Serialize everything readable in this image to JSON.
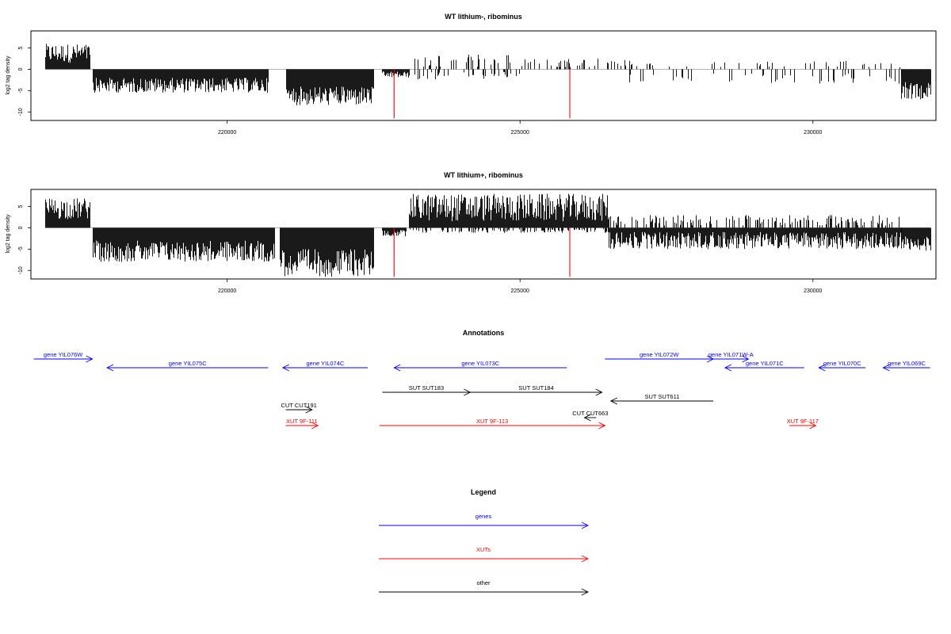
{
  "colors": {
    "gene": "#0000ff",
    "xut": "#ff0000",
    "other": "#000000",
    "signal": "#000000",
    "marker": "#ff0000",
    "baseline": "#888888"
  },
  "chart_data": [
    {
      "type": "bar",
      "title": "WT lithium-, ribominus",
      "ylabel": "log2 tag density",
      "xlim": [
        216650,
        232100
      ],
      "ylim": [
        -12,
        9
      ],
      "x_ticks": [
        220000,
        225000,
        230000
      ],
      "x_tick_labels": [
        "220000",
        "225000",
        "230000"
      ],
      "y_ticks": [
        5,
        0,
        -5,
        -10
      ],
      "y_tick_labels": [
        "5",
        "0",
        "-5",
        "-10"
      ],
      "grid": false,
      "red_markers": [
        {
          "x": 222850,
          "y": -11.5
        },
        {
          "x": 225850,
          "y": -11.5
        }
      ],
      "signal_segments": [
        {
          "x": [
            216900,
            217650
          ],
          "sign": 1,
          "min": 1.5,
          "max": 6.0
        },
        {
          "x": [
            217700,
            220700
          ],
          "sign": -1,
          "min": 2.0,
          "max": 5.5
        },
        {
          "x": [
            221000,
            222500
          ],
          "sign": -1,
          "min": 4.0,
          "max": 8.5
        },
        {
          "x": [
            222650,
            223100
          ],
          "sign": -1,
          "min": 0.5,
          "max": 2.0
        },
        {
          "x": [
            223200,
            225000
          ],
          "sign": 1,
          "min": 0.5,
          "max": 3.5,
          "density": 0.25
        },
        {
          "x": [
            223200,
            225000
          ],
          "sign": -1,
          "min": 0.5,
          "max": 2.5,
          "density": 0.2
        },
        {
          "x": [
            225000,
            226800
          ],
          "sign": 1,
          "min": 0.5,
          "max": 2.5,
          "density": 0.2
        },
        {
          "x": [
            226800,
            231500
          ],
          "sign": -1,
          "min": 1.0,
          "max": 3.5,
          "density": 0.12
        },
        {
          "x": [
            226800,
            231500
          ],
          "sign": 1,
          "min": 0.5,
          "max": 2.0,
          "density": 0.1
        },
        {
          "x": [
            231500,
            232000
          ],
          "sign": -1,
          "min": 3.0,
          "max": 7.0
        }
      ]
    },
    {
      "type": "bar",
      "title": "WT lithium+, ribominus",
      "ylabel": "log2 tag density",
      "xlim": [
        216650,
        232100
      ],
      "ylim": [
        -12,
        9
      ],
      "x_ticks": [
        220000,
        225000,
        230000
      ],
      "x_tick_labels": [
        "220000",
        "225000",
        "230000"
      ],
      "y_ticks": [
        5,
        0,
        -5,
        -10
      ],
      "y_tick_labels": [
        "5",
        "0",
        "-5",
        "-10"
      ],
      "grid": false,
      "red_markers": [
        {
          "x": 222850,
          "y": -11.5
        },
        {
          "x": 225850,
          "y": -11.5
        }
      ],
      "signal_segments": [
        {
          "x": [
            216900,
            217650
          ],
          "sign": 1,
          "min": 2.0,
          "max": 7.0
        },
        {
          "x": [
            217700,
            220800
          ],
          "sign": -1,
          "min": 3.0,
          "max": 8.0
        },
        {
          "x": [
            220900,
            222500
          ],
          "sign": -1,
          "min": 5.0,
          "max": 11.5
        },
        {
          "x": [
            222650,
            223050
          ],
          "sign": -1,
          "min": 0.5,
          "max": 2.0
        },
        {
          "x": [
            223100,
            226500
          ],
          "sign": 1,
          "min": 1.5,
          "max": 8.0
        },
        {
          "x": [
            223100,
            226500
          ],
          "sign": -1,
          "min": 0.3,
          "max": 1.2,
          "density": 0.3
        },
        {
          "x": [
            226500,
            231500
          ],
          "sign": -1,
          "min": 1.0,
          "max": 5.0
        },
        {
          "x": [
            226500,
            231500
          ],
          "sign": 1,
          "min": 0.5,
          "max": 3.0,
          "density": 0.35
        },
        {
          "x": [
            231500,
            232000
          ],
          "sign": -1,
          "min": 2.0,
          "max": 5.5
        }
      ]
    }
  ],
  "annotations": {
    "title": "Annotations",
    "xlim": [
      216650,
      232100
    ],
    "features": [
      {
        "label": "gene YIL076W",
        "class": "gene",
        "start": 216700,
        "end": 217700,
        "dir": "right",
        "row": 0
      },
      {
        "label": "gene YIL075C",
        "class": "gene",
        "start": 217950,
        "end": 220700,
        "dir": "left",
        "row": 1
      },
      {
        "label": "gene YIL074C",
        "class": "gene",
        "start": 220950,
        "end": 222400,
        "dir": "left",
        "row": 1
      },
      {
        "label": "gene YIL073C",
        "class": "gene",
        "start": 222850,
        "end": 225800,
        "dir": "left",
        "row": 1
      },
      {
        "label": "gene YIL072W",
        "class": "gene",
        "start": 226450,
        "end": 228300,
        "dir": "right",
        "row": 0
      },
      {
        "label": "gene YIL071W-A",
        "class": "gene",
        "start": 228300,
        "end": 228900,
        "dir": "right",
        "row": 0
      },
      {
        "label": "gene YIL071C",
        "class": "gene",
        "start": 228500,
        "end": 229850,
        "dir": "left",
        "row": 1
      },
      {
        "label": "gene YIL070C",
        "class": "gene",
        "start": 230100,
        "end": 230900,
        "dir": "left",
        "row": 1
      },
      {
        "label": "gene YIL069C",
        "class": "gene",
        "start": 231200,
        "end": 232000,
        "dir": "left",
        "row": 1
      },
      {
        "label": "SUT SUT183",
        "class": "other",
        "start": 222650,
        "end": 224150,
        "dir": "right",
        "row": 2
      },
      {
        "label": "SUT SUT184",
        "class": "other",
        "start": 224150,
        "end": 226400,
        "dir": "right",
        "row": 2
      },
      {
        "label": "SUT SUT611",
        "class": "other",
        "start": 226550,
        "end": 228300,
        "dir": "left",
        "row": 3
      },
      {
        "label": "CUT CUT191",
        "class": "other",
        "start": 221000,
        "end": 221450,
        "dir": "right",
        "row": 4
      },
      {
        "label": "CUT CUT663",
        "class": "other",
        "start": 226100,
        "end": 226300,
        "dir": "left",
        "row": 5
      },
      {
        "label": "XUT 9F-111",
        "class": "xut",
        "start": 221000,
        "end": 221550,
        "dir": "right",
        "row": 6
      },
      {
        "label": "XUT 9F-113",
        "class": "xut",
        "start": 222600,
        "end": 226450,
        "dir": "right",
        "row": 6
      },
      {
        "label": "XUT 9F-117",
        "class": "xut",
        "start": 229600,
        "end": 230050,
        "dir": "right",
        "row": 6
      }
    ]
  },
  "legend": {
    "title": "Legend",
    "items": [
      {
        "label": "genes",
        "class": "gene"
      },
      {
        "label": "XUTs",
        "class": "xut"
      },
      {
        "label": "other",
        "class": "other"
      }
    ]
  }
}
